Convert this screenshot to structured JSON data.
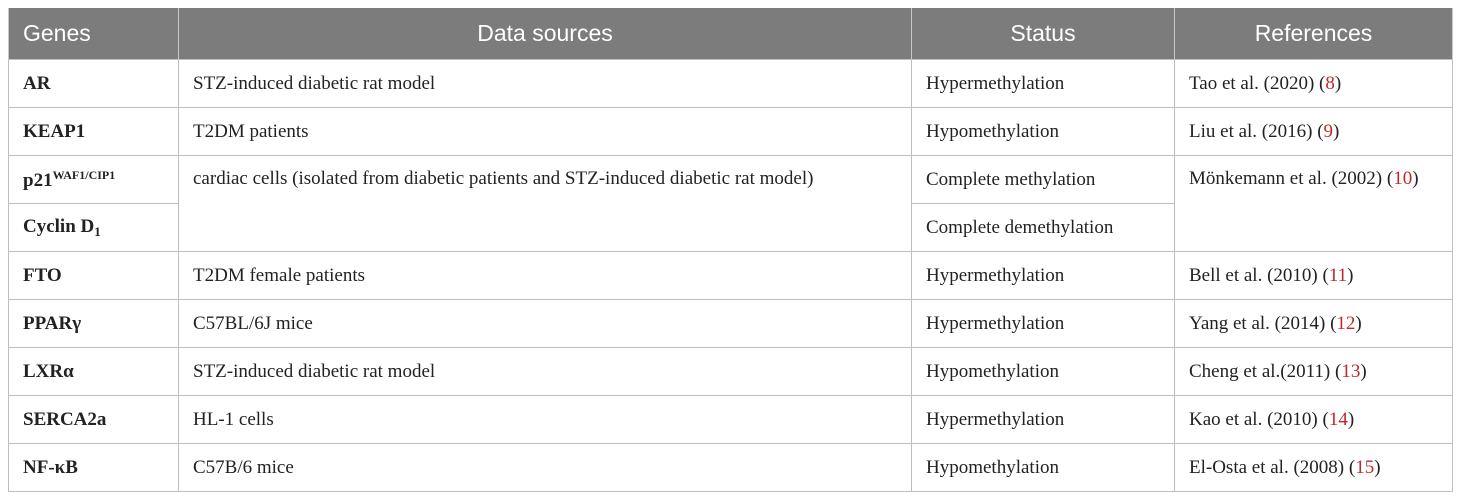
{
  "headers": [
    "Genes",
    "Data sources",
    "Status",
    "References"
  ],
  "rows": [
    {
      "gene": "AR",
      "source": "STZ-induced diabetic rat model",
      "status": "Hypermethylation",
      "ref_text": "Tao et al. (2020) (",
      "ref_num": "8",
      "ref_close": ")"
    },
    {
      "gene": "KEAP1",
      "source": "T2DM patients",
      "status": "Hypomethylation",
      "ref_text": "Liu et al. (2016) (",
      "ref_num": "9",
      "ref_close": ")"
    },
    {
      "gene": "p21",
      "gene_sup": "WAF1/CIP1",
      "source": "cardiac cells (isolated from diabetic patients and STZ-induced diabetic rat model)",
      "status": "Complete methylation",
      "ref_text": "Mönkemann et al. (2002) (",
      "ref_num": "10",
      "ref_close": ")"
    },
    {
      "gene": "Cyclin D",
      "gene_sub": "1",
      "status": "Complete demethylation"
    },
    {
      "gene": "FTO",
      "source": "T2DM female patients",
      "status": "Hypermethylation",
      "ref_text": "Bell et al. (2010) (",
      "ref_num": "11",
      "ref_close": ")"
    },
    {
      "gene": "PPARγ",
      "source": "C57BL/6J mice",
      "status": "Hypermethylation",
      "ref_text": "Yang et al. (2014) (",
      "ref_num": "12",
      "ref_close": ")"
    },
    {
      "gene": "LXRα",
      "source": "STZ-induced diabetic rat model",
      "status": "Hypomethylation",
      "ref_text": "Cheng et al.(2011) (",
      "ref_num": "13",
      "ref_close": ")"
    },
    {
      "gene": "SERCA2a",
      "source": "HL-1 cells",
      "status": "Hypermethylation",
      "ref_text": "Kao et al. (2010) (",
      "ref_num": "14",
      "ref_close": ")"
    },
    {
      "gene": "NF-κB",
      "source": "C57B/6 mice",
      "status": "Hypomethylation",
      "ref_text": "El-Osta et al. (2008) (",
      "ref_num": "15",
      "ref_close": ")"
    }
  ]
}
